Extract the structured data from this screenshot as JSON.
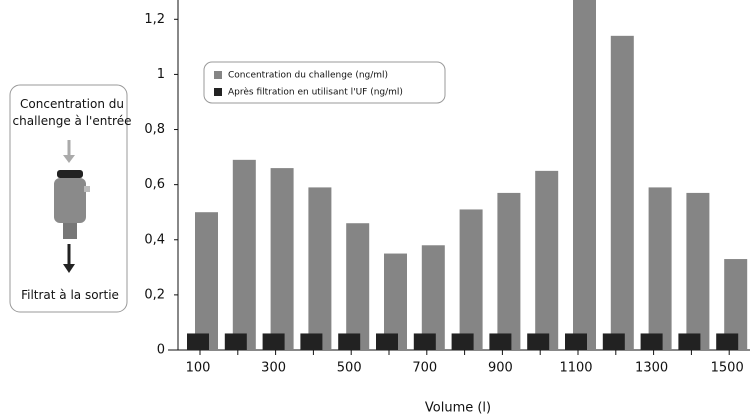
{
  "chart_data": {
    "type": "bar",
    "x_label": "Volume (l)",
    "categories": [
      100,
      null,
      300,
      null,
      500,
      null,
      700,
      null,
      900,
      null,
      1100,
      null,
      1300,
      null,
      1500
    ],
    "series": [
      {
        "name": "Concentration du challenge (ng/ml)",
        "color": "#858585",
        "values": [
          0.5,
          0.69,
          0.66,
          0.59,
          0.46,
          0.35,
          0.38,
          0.51,
          0.57,
          0.65,
          1.27,
          1.14,
          0.59,
          0.57,
          0.33
        ]
      },
      {
        "name": "Après filtration en utilisant l'UF (ng/ml)",
        "color": "#222222",
        "values": [
          0.06,
          0.06,
          0.06,
          0.06,
          0.06,
          0.06,
          0.06,
          0.06,
          0.06,
          0.06,
          0.06,
          0.06,
          0.06,
          0.06,
          0.06
        ]
      }
    ],
    "ylim": [
      0,
      1.27
    ],
    "yticks": [
      0,
      {
        "value": 0.2,
        "label": "0,2"
      },
      {
        "value": 0.4,
        "label": "0,4"
      },
      {
        "value": 0.6,
        "label": "0,6"
      },
      {
        "value": 0.8,
        "label": "0,8"
      },
      1,
      {
        "value": 1.2,
        "label": "1,2"
      }
    ],
    "legend": "top-left"
  },
  "diagram": {
    "input_label": "Concentration du challenge à l'entrée",
    "output_label": "Filtrat à la sortie"
  }
}
